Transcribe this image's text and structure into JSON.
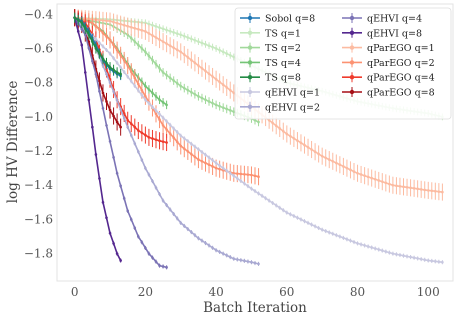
{
  "chart_data": {
    "type": "line",
    "title": "",
    "xlabel": "Batch Iteration",
    "ylabel": "log HV Difference",
    "xlim": [
      -5,
      107
    ],
    "ylim": [
      -1.96,
      -0.34
    ],
    "xticks": [
      0,
      20,
      40,
      60,
      80,
      100
    ],
    "yticks": [
      -0.4,
      -0.6,
      -0.8,
      -1.0,
      -1.2,
      -1.4,
      -1.6,
      -1.8
    ],
    "xtick_labels": [
      "0",
      "20",
      "40",
      "60",
      "80",
      "100"
    ],
    "ytick_labels": [
      "−0.4",
      "−0.6",
      "−0.8",
      "−1.0",
      "−1.2",
      "−1.4",
      "−1.6",
      "−1.8"
    ],
    "grid": false,
    "legend_position": "top-right",
    "series": [
      {
        "name": "Sobol q=8",
        "color": "#1f77b4",
        "x": [
          0,
          2,
          4,
          6,
          8,
          10,
          12,
          13
        ],
        "y": [
          -0.42,
          -0.44,
          -0.5,
          -0.58,
          -0.67,
          -0.72,
          -0.75,
          -0.76
        ],
        "err": 0.025
      },
      {
        "name": "TS q=1",
        "color": "#c7e9c0",
        "x": [
          0,
          10,
          20,
          30,
          40,
          50,
          60,
          70,
          80,
          90,
          100,
          104
        ],
        "y": [
          -0.42,
          -0.43,
          -0.45,
          -0.52,
          -0.6,
          -0.7,
          -0.8,
          -0.85,
          -0.91,
          -0.95,
          -0.98,
          -1.0
        ],
        "err": 0.02
      },
      {
        "name": "TS q=2",
        "color": "#a1d99b",
        "x": [
          0,
          5,
          10,
          15,
          20,
          25,
          30,
          35,
          40,
          45,
          50,
          52
        ],
        "y": [
          -0.42,
          -0.44,
          -0.46,
          -0.52,
          -0.62,
          -0.74,
          -0.82,
          -0.88,
          -0.93,
          -0.97,
          -1.01,
          -1.03
        ],
        "err": 0.025
      },
      {
        "name": "TS q=4",
        "color": "#74c476",
        "x": [
          0,
          4,
          8,
          12,
          16,
          20,
          24,
          26
        ],
        "y": [
          -0.42,
          -0.44,
          -0.5,
          -0.6,
          -0.72,
          -0.82,
          -0.9,
          -0.93
        ],
        "err": 0.025
      },
      {
        "name": "TS q=8",
        "color": "#238b45",
        "x": [
          0,
          2,
          4,
          6,
          8,
          10,
          12,
          13
        ],
        "y": [
          -0.42,
          -0.45,
          -0.52,
          -0.6,
          -0.66,
          -0.71,
          -0.74,
          -0.75
        ],
        "err": 0.03
      },
      {
        "name": "qEHVI q=1",
        "color": "#c8c8e0",
        "x": [
          0,
          10,
          20,
          30,
          40,
          50,
          60,
          70,
          80,
          90,
          100,
          104
        ],
        "y": [
          -0.42,
          -0.63,
          -0.9,
          -1.11,
          -1.27,
          -1.42,
          -1.56,
          -1.66,
          -1.74,
          -1.8,
          -1.84,
          -1.85
        ],
        "err": 0.012
      },
      {
        "name": "qEHVI q=2",
        "color": "#a9a9d2",
        "x": [
          0,
          5,
          10,
          15,
          20,
          25,
          30,
          35,
          40,
          45,
          50,
          52
        ],
        "y": [
          -0.42,
          -0.55,
          -0.8,
          -1.06,
          -1.3,
          -1.49,
          -1.62,
          -1.71,
          -1.78,
          -1.83,
          -1.85,
          -1.86
        ],
        "err": 0.012
      },
      {
        "name": "qEHVI q=4",
        "color": "#7b73b5",
        "x": [
          0,
          3,
          6,
          9,
          12,
          15,
          18,
          21,
          24,
          26
        ],
        "y": [
          -0.42,
          -0.52,
          -0.75,
          -1.05,
          -1.33,
          -1.55,
          -1.7,
          -1.8,
          -1.87,
          -1.88
        ],
        "err": 0.012
      },
      {
        "name": "qEHVI q=8",
        "color": "#54278f",
        "x": [
          0,
          2,
          4,
          6,
          8,
          10,
          12,
          13
        ],
        "y": [
          -0.42,
          -0.58,
          -0.9,
          -1.22,
          -1.5,
          -1.68,
          -1.8,
          -1.84
        ],
        "err": 0.012
      },
      {
        "name": "qParEGO q=1",
        "color": "#fcbba1",
        "x": [
          0,
          10,
          20,
          30,
          40,
          50,
          60,
          70,
          80,
          90,
          100,
          104
        ],
        "y": [
          -0.42,
          -0.44,
          -0.5,
          -0.62,
          -0.78,
          -0.94,
          -1.1,
          -1.23,
          -1.33,
          -1.4,
          -1.43,
          -1.44
        ],
        "err": 0.05
      },
      {
        "name": "qParEGO q=2",
        "color": "#fc9272",
        "x": [
          0,
          5,
          10,
          15,
          20,
          25,
          30,
          35,
          40,
          45,
          50,
          52
        ],
        "y": [
          -0.42,
          -0.45,
          -0.55,
          -0.7,
          -0.88,
          -1.05,
          -1.17,
          -1.25,
          -1.3,
          -1.33,
          -1.34,
          -1.35
        ],
        "err": 0.05
      },
      {
        "name": "qParEGO q=4",
        "color": "#ef3b2c",
        "x": [
          0,
          3,
          6,
          9,
          12,
          15,
          18,
          21,
          24,
          26
        ],
        "y": [
          -0.42,
          -0.45,
          -0.55,
          -0.72,
          -0.9,
          -1.02,
          -1.08,
          -1.12,
          -1.14,
          -1.15
        ],
        "err": 0.05
      },
      {
        "name": "qParEGO q=8",
        "color": "#a50f15",
        "x": [
          0,
          2,
          4,
          6,
          8,
          10,
          12,
          13
        ],
        "y": [
          -0.42,
          -0.46,
          -0.56,
          -0.72,
          -0.86,
          -0.96,
          -1.03,
          -1.06
        ],
        "err": 0.05
      }
    ]
  }
}
